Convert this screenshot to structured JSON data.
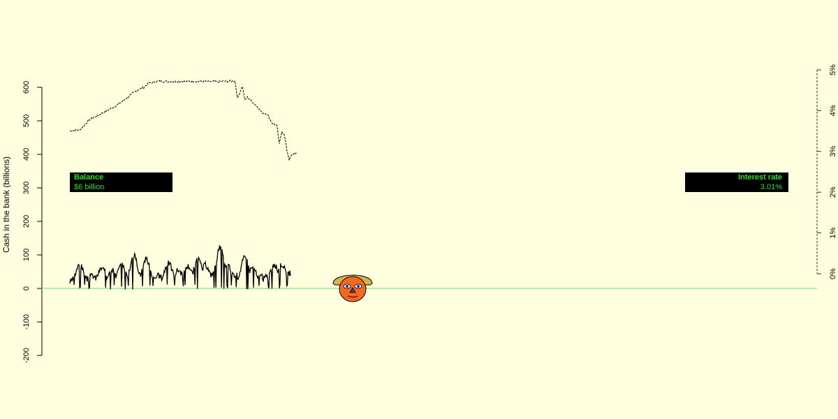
{
  "chart_data": {
    "type": "line",
    "left_axis": {
      "label": "Cash in the bank (billions)",
      "ticks": [
        -200,
        -100,
        0,
        100,
        200,
        300,
        400,
        500,
        600
      ],
      "range": [
        -200,
        600
      ]
    },
    "right_axis": {
      "ticks": [
        "0%",
        "1%",
        "2%",
        "3%",
        "4%",
        "5%"
      ],
      "range": [
        0,
        5
      ]
    },
    "zero_line_color": "#90EE90",
    "series": [
      {
        "style": "solid",
        "color": "#000000",
        "axis": "left",
        "x_range": [
          0,
          100
        ],
        "peaks": [
          [
            4,
            70
          ],
          [
            9,
            38
          ],
          [
            13,
            60
          ],
          [
            17,
            58
          ],
          [
            21,
            70
          ],
          [
            26,
            97
          ],
          [
            31,
            87
          ],
          [
            36,
            38
          ],
          [
            40,
            76
          ],
          [
            44,
            55
          ],
          [
            48,
            67
          ],
          [
            52,
            87
          ],
          [
            55,
            70
          ],
          [
            58,
            45
          ],
          [
            61,
            122
          ],
          [
            64,
            68
          ],
          [
            67,
            42
          ],
          [
            71,
            92
          ],
          [
            74,
            62
          ],
          [
            77,
            38
          ],
          [
            80,
            36
          ],
          [
            83,
            68
          ],
          [
            86,
            72
          ],
          [
            89,
            45
          ]
        ],
        "baseline": 15,
        "valley_range": [
          -4,
          12
        ]
      },
      {
        "style": "dashed",
        "color": "#000000",
        "axis": "right",
        "x_range": [
          0,
          100
        ],
        "points": [
          [
            0,
            3.5
          ],
          [
            4,
            3.53
          ],
          [
            6,
            3.65
          ],
          [
            8,
            3.78
          ],
          [
            10,
            3.84
          ],
          [
            12,
            3.9
          ],
          [
            14,
            3.97
          ],
          [
            16,
            4.03
          ],
          [
            18,
            4.1
          ],
          [
            20,
            4.17
          ],
          [
            22,
            4.26
          ],
          [
            24,
            4.35
          ],
          [
            26,
            4.45
          ],
          [
            28,
            4.52
          ],
          [
            30,
            4.57
          ],
          [
            32,
            4.67
          ],
          [
            34,
            4.7
          ],
          [
            36,
            4.72
          ],
          [
            40,
            4.71
          ],
          [
            50,
            4.72
          ],
          [
            60,
            4.71
          ],
          [
            64,
            4.72
          ],
          [
            67,
            4.73
          ],
          [
            68,
            4.3
          ],
          [
            70,
            4.6
          ],
          [
            71,
            4.25
          ],
          [
            72,
            4.33
          ],
          [
            74,
            4.22
          ],
          [
            76,
            4.1
          ],
          [
            78,
            3.95
          ],
          [
            80,
            3.92
          ],
          [
            82,
            3.7
          ],
          [
            84,
            3.63
          ],
          [
            85,
            3.17
          ],
          [
            86,
            3.5
          ],
          [
            87,
            3.4
          ],
          [
            88,
            3.05
          ],
          [
            89,
            2.8
          ],
          [
            90,
            2.9
          ],
          [
            91,
            2.95
          ],
          [
            92,
            2.95
          ]
        ]
      }
    ]
  },
  "balance_panel": {
    "title": "Balance",
    "value": "$6 billion"
  },
  "rate_panel": {
    "title": "Interest rate",
    "value": "3.01%"
  },
  "face": {
    "hat_color": "#D8B24A",
    "face_color": "#F26A1E",
    "eye_color": "#1F2FB0",
    "nose_color": "#4B3D8A",
    "mouth_color": "#9E1D1D"
  }
}
